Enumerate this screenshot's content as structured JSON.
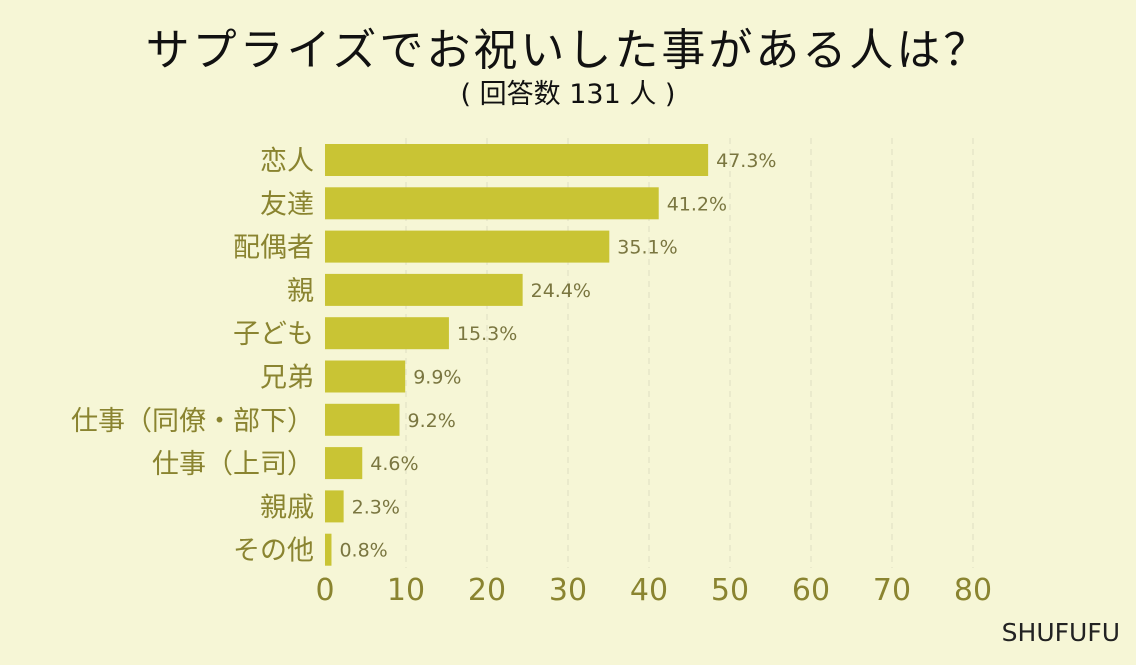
{
  "chart_data": {
    "type": "bar",
    "orientation": "horizontal",
    "title": "サプライズでお祝いした事がある人は？",
    "subtitle": "( 回答数 131 人 )",
    "categories": [
      "恋人",
      "友達",
      "配偶者",
      "親",
      "子ども",
      "兄弟",
      "仕事（同僚・部下）",
      "仕事（上司）",
      "親戚",
      "その他"
    ],
    "values": [
      47.3,
      41.2,
      35.1,
      24.4,
      15.3,
      9.9,
      9.2,
      4.6,
      2.3,
      0.8
    ],
    "value_labels": [
      "47.3%",
      "41.2%",
      "35.1%",
      "24.4%",
      "15.3%",
      "9.9%",
      "9.2%",
      "4.6%",
      "2.3%",
      "0.8%"
    ],
    "x_ticks": [
      0,
      10,
      20,
      30,
      40,
      50,
      60,
      70,
      80
    ],
    "xlim": [
      0,
      80
    ],
    "grid": "vertical dashed",
    "bar_color": "#c9c434",
    "background_color": "#f6f6d6",
    "category_label_color": "#8a8430",
    "tick_label_color": "#8a8430",
    "value_label_color": "#7a7640",
    "gridline_color": "#e2e2c6"
  },
  "brand": "SHUFUFU"
}
